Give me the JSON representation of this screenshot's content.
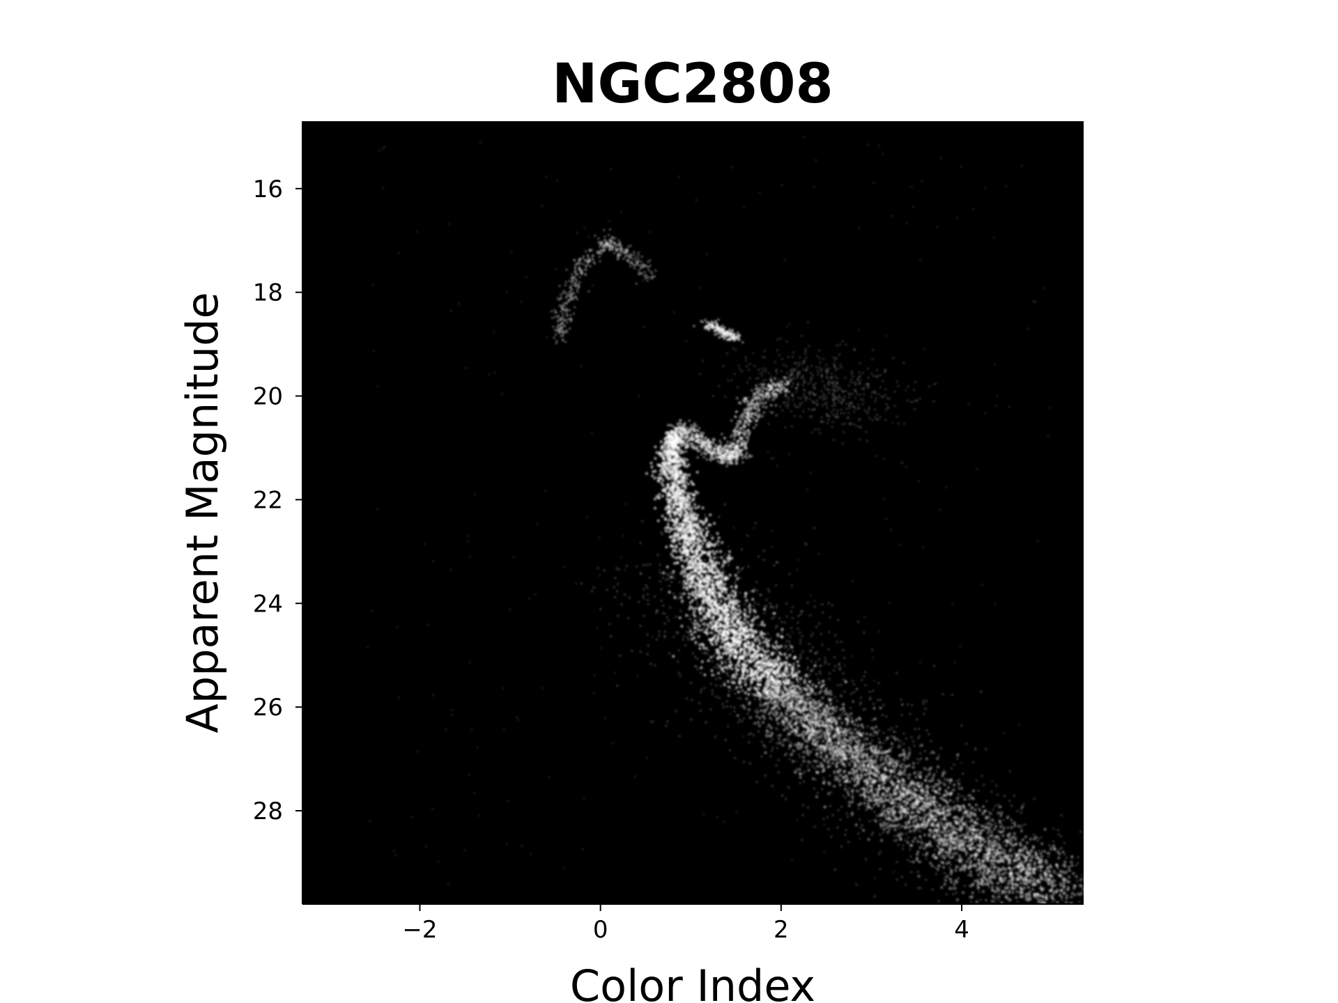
{
  "chart_data": {
    "type": "scatter",
    "title": "NGC2808",
    "xlabel": "Color Index",
    "ylabel": "Apparent Magnitude",
    "xlim": [
      -3.3,
      5.35
    ],
    "ylim": [
      29.8,
      14.7
    ],
    "y_inverted": true,
    "x_ticks": [
      -2,
      0,
      2,
      4
    ],
    "x_tick_labels": [
      "−2",
      "0",
      "2",
      "4"
    ],
    "y_ticks": [
      16,
      18,
      20,
      22,
      24,
      26,
      28
    ],
    "y_tick_labels": [
      "16",
      "18",
      "20",
      "22",
      "24",
      "26",
      "28"
    ],
    "background_color": "#000000",
    "point_color": "#ffffff",
    "grid": false,
    "legend": "none",
    "components": [
      {
        "name": "main_sequence_ridge",
        "points": [
          [
            0.85,
            20.65
          ],
          [
            0.78,
            21.0
          ],
          [
            0.8,
            21.5
          ],
          [
            0.9,
            22.2
          ],
          [
            1.02,
            22.9
          ],
          [
            1.18,
            23.6
          ],
          [
            1.38,
            24.3
          ],
          [
            1.62,
            24.9
          ],
          [
            1.9,
            25.5
          ],
          [
            2.2,
            26.1
          ],
          [
            2.6,
            26.7
          ],
          [
            3.05,
            27.3
          ],
          [
            3.5,
            27.9
          ],
          [
            4.0,
            28.5
          ],
          [
            4.5,
            29.1
          ],
          [
            5.0,
            29.6
          ]
        ]
      },
      {
        "name": "subgiant_branch",
        "points": [
          [
            0.85,
            20.55
          ],
          [
            1.0,
            20.75
          ],
          [
            1.15,
            20.95
          ],
          [
            1.3,
            21.1
          ],
          [
            1.45,
            21.2
          ],
          [
            1.5,
            21.05
          ],
          [
            1.55,
            20.7
          ],
          [
            1.65,
            20.3
          ],
          [
            1.8,
            19.95
          ],
          [
            2.05,
            19.75
          ]
        ]
      },
      {
        "name": "red_clump",
        "points": [
          [
            1.2,
            18.6
          ],
          [
            1.35,
            18.75
          ],
          [
            1.5,
            18.9
          ]
        ]
      },
      {
        "name": "horizontal_branch",
        "points": [
          [
            -0.45,
            18.9
          ],
          [
            -0.4,
            18.3
          ],
          [
            -0.25,
            17.6
          ],
          [
            -0.05,
            17.2
          ],
          [
            0.1,
            17.0
          ],
          [
            0.3,
            17.3
          ],
          [
            0.55,
            17.7
          ]
        ]
      },
      {
        "name": "giant_branch_spread",
        "points": [
          [
            1.9,
            19.5
          ],
          [
            2.2,
            19.7
          ],
          [
            2.6,
            19.9
          ],
          [
            3.0,
            20.2
          ]
        ]
      }
    ]
  }
}
